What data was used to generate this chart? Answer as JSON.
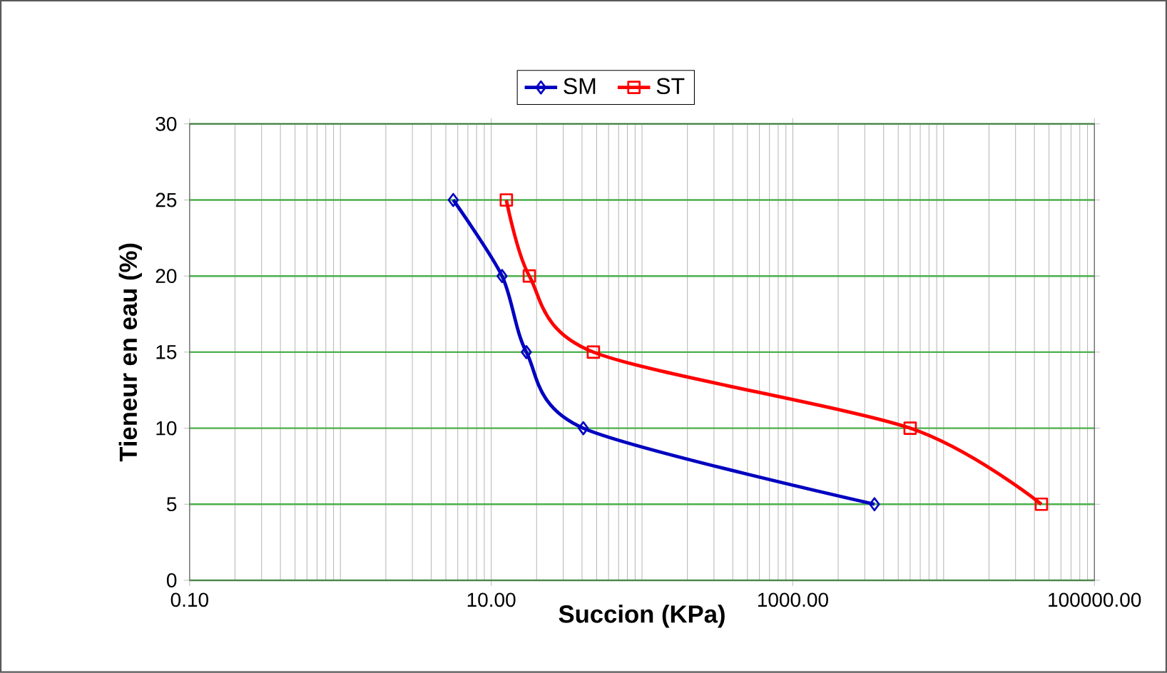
{
  "chart_data": {
    "type": "line",
    "xlabel": "Succion (KPa)",
    "ylabel": "Tieneur en eau (%)",
    "log": "x",
    "grid": true,
    "legend": "top",
    "line_style": "solid",
    "xlim": [
      0.1,
      100000
    ],
    "xticks": [
      {
        "value": 0.1,
        "label": "0.10"
      },
      {
        "value": 10,
        "label": "10.00"
      },
      {
        "value": 1000,
        "label": "1000.00"
      },
      {
        "value": 100000,
        "label": "100000.00"
      }
    ],
    "ylim": [
      0,
      30
    ],
    "yticks": [
      0,
      5,
      10,
      15,
      20,
      25,
      30
    ],
    "series": [
      {
        "name": "SM",
        "color": "#0000c0",
        "marker": "diamond",
        "x": [
          5.6,
          11.8,
          17.1,
          40.8,
          3480
        ],
        "values": [
          25,
          20,
          15,
          10,
          5
        ]
      },
      {
        "name": "ST",
        "color": "#ff0000",
        "marker": "square",
        "x": [
          12.6,
          17.9,
          47.6,
          6000,
          44500
        ],
        "values": [
          25,
          20,
          15,
          10,
          5
        ]
      }
    ]
  }
}
